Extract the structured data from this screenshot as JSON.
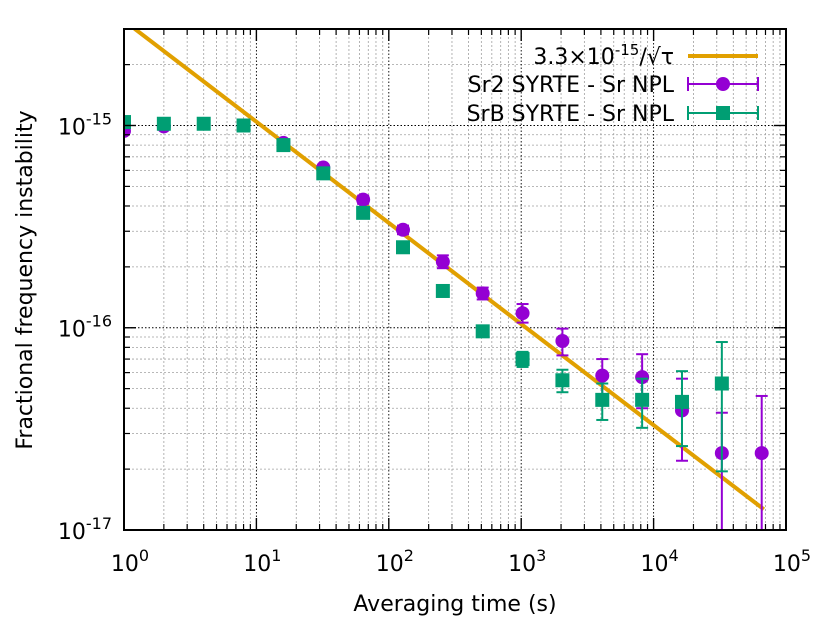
{
  "chart_data": {
    "type": "scatter",
    "xlabel": "Averaging time (s)",
    "ylabel": "Fractional frequency instability",
    "x_scale": "log",
    "y_scale": "log",
    "xlim": [
      1,
      100000
    ],
    "ylim": [
      1e-17,
      3e-15
    ],
    "grid": true,
    "legend_position": "top-right",
    "x_ticks": [
      {
        "value": 1,
        "base": "10",
        "exp": "0"
      },
      {
        "value": 10,
        "base": "10",
        "exp": "1"
      },
      {
        "value": 100,
        "base": "10",
        "exp": "2"
      },
      {
        "value": 1000,
        "base": "10",
        "exp": "3"
      },
      {
        "value": 10000,
        "base": "10",
        "exp": "4"
      },
      {
        "value": 100000,
        "base": "10",
        "exp": "5"
      }
    ],
    "y_ticks": [
      {
        "value": 1e-17,
        "base": "10",
        "exp": "-17"
      },
      {
        "value": 1e-16,
        "base": "10",
        "exp": "-16"
      },
      {
        "value": 1e-15,
        "base": "10",
        "exp": "-15"
      }
    ],
    "fit_line": {
      "label_prefix": "3.3×10",
      "label_exp": "-15",
      "label_suffix": "/√τ",
      "coefficient": 3.3e-15,
      "exponent": -0.5,
      "x_range": [
        1.2,
        68000
      ],
      "color": "#e1a000"
    },
    "series": [
      {
        "name": "Sr2 SYRTE - Sr NPL",
        "marker": "circle",
        "color": "#9400d3",
        "points": [
          {
            "x": 1,
            "y": 9.4e-16,
            "ylo": 9.3e-16,
            "yhi": 9.5e-16
          },
          {
            "x": 2,
            "y": 9.9e-16,
            "ylo": 9.8e-16,
            "yhi": 1e-15
          },
          {
            "x": 16,
            "y": 8.2e-16,
            "ylo": 8e-16,
            "yhi": 8.4e-16
          },
          {
            "x": 32,
            "y": 6.2e-16,
            "ylo": 6e-16,
            "yhi": 6.4e-16
          },
          {
            "x": 64,
            "y": 4.3e-16,
            "ylo": 4.1e-16,
            "yhi": 4.5e-16
          },
          {
            "x": 128,
            "y": 3.05e-16,
            "ylo": 2.9e-16,
            "yhi": 3.2e-16
          },
          {
            "x": 256,
            "y": 2.12e-16,
            "ylo": 1.97e-16,
            "yhi": 2.28e-16
          },
          {
            "x": 512,
            "y": 1.48e-16,
            "ylo": 1.38e-16,
            "yhi": 1.58e-16
          },
          {
            "x": 1024,
            "y": 1.18e-16,
            "ylo": 1.06e-16,
            "yhi": 1.31e-16
          },
          {
            "x": 2048,
            "y": 8.6e-17,
            "ylo": 7.3e-17,
            "yhi": 9.9e-17
          },
          {
            "x": 4096,
            "y": 5.8e-17,
            "ylo": 4.6e-17,
            "yhi": 7e-17
          },
          {
            "x": 8192,
            "y": 5.7e-17,
            "ylo": 4e-17,
            "yhi": 7.4e-17
          },
          {
            "x": 16384,
            "y": 3.9e-17,
            "ylo": 2.2e-17,
            "yhi": 5.6e-17
          },
          {
            "x": 32768,
            "y": 2.4e-17,
            "ylo": 1e-17,
            "yhi": 3.8e-17
          },
          {
            "x": 65536,
            "y": 2.4e-17,
            "ylo": 1e-17,
            "yhi": 4.6e-17
          }
        ]
      },
      {
        "name": "SrB SYRTE - Sr NPL",
        "marker": "square",
        "color": "#009e73",
        "points": [
          {
            "x": 1,
            "y": 1.04e-15,
            "ylo": 1.03e-15,
            "yhi": 1.05e-15
          },
          {
            "x": 2,
            "y": 1.02e-15,
            "ylo": 1.01e-15,
            "yhi": 1.03e-15
          },
          {
            "x": 4,
            "y": 1.02e-15,
            "ylo": 1.01e-15,
            "yhi": 1.03e-15
          },
          {
            "x": 8,
            "y": 1e-15,
            "ylo": 9.9e-16,
            "yhi": 1.01e-15
          },
          {
            "x": 16,
            "y": 8e-16,
            "ylo": 7.8e-16,
            "yhi": 8.2e-16
          },
          {
            "x": 32,
            "y": 5.8e-16,
            "ylo": 5.6e-16,
            "yhi": 6e-16
          },
          {
            "x": 64,
            "y": 3.7e-16,
            "ylo": 3.55e-16,
            "yhi": 3.85e-16
          },
          {
            "x": 128,
            "y": 2.5e-16,
            "ylo": 2.4e-16,
            "yhi": 2.6e-16
          },
          {
            "x": 256,
            "y": 1.52e-16,
            "ylo": 1.46e-16,
            "yhi": 1.58e-16
          },
          {
            "x": 512,
            "y": 9.6e-17,
            "ylo": 9.2e-17,
            "yhi": 1e-16
          },
          {
            "x": 1024,
            "y": 7e-17,
            "ylo": 6.4e-17,
            "yhi": 7.6e-17
          },
          {
            "x": 2048,
            "y": 5.5e-17,
            "ylo": 4.8e-17,
            "yhi": 6.2e-17
          },
          {
            "x": 4096,
            "y": 4.4e-17,
            "ylo": 3.5e-17,
            "yhi": 5.3e-17
          },
          {
            "x": 8192,
            "y": 4.4e-17,
            "ylo": 3.2e-17,
            "yhi": 5.6e-17
          },
          {
            "x": 16384,
            "y": 4.3e-17,
            "ylo": 2.6e-17,
            "yhi": 6.1e-17
          },
          {
            "x": 32768,
            "y": 5.3e-17,
            "ylo": 1.95e-17,
            "yhi": 8.5e-17
          }
        ]
      }
    ]
  }
}
